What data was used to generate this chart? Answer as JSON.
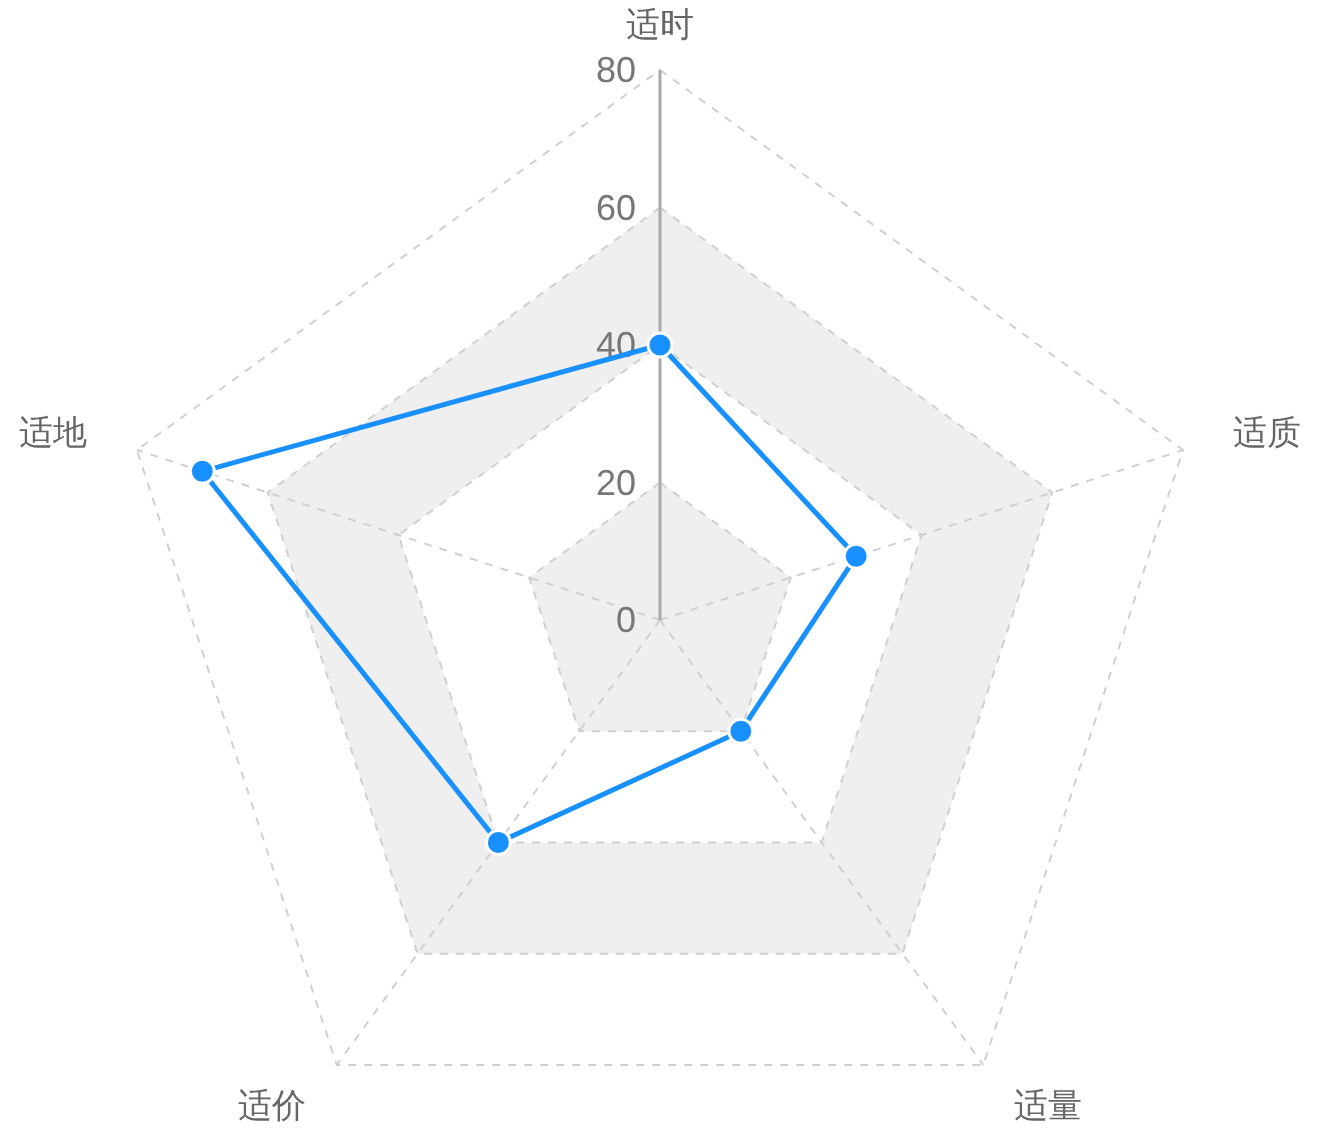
{
  "chart_data": {
    "type": "radar",
    "categories": [
      "适时",
      "适质",
      "适量",
      "适价",
      "适地"
    ],
    "series": [
      {
        "color": "#1890ff",
        "values": [
          40,
          30,
          20,
          40,
          70
        ]
      }
    ],
    "ylim": [
      0,
      80
    ],
    "yticks": [
      0,
      20,
      40,
      60,
      80
    ],
    "grid": true,
    "marker": "circle",
    "line_style": "solid"
  }
}
